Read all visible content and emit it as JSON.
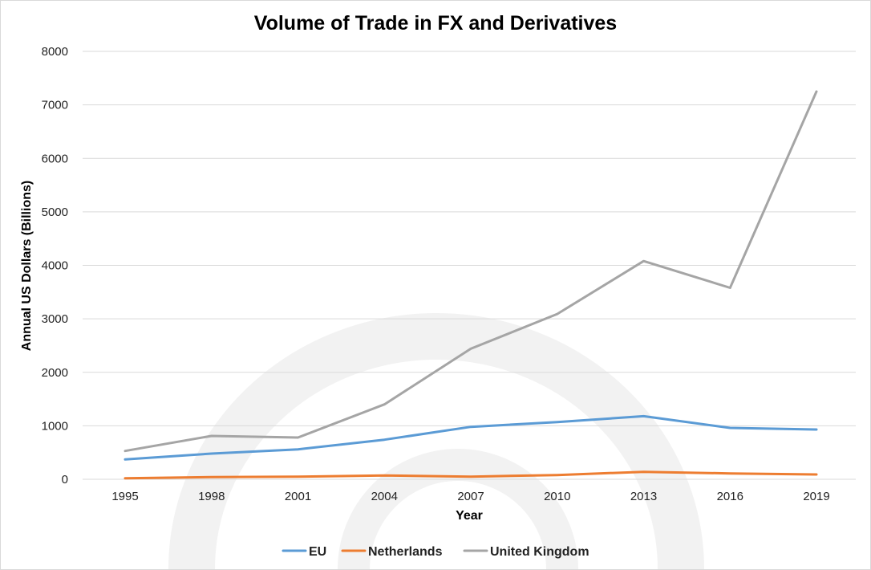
{
  "chart_data": {
    "type": "line",
    "title": "Volume of Trade in FX and Derivatives",
    "xlabel": "Year",
    "ylabel": "Annual US Dollars (Billions)",
    "categories": [
      "1995",
      "1998",
      "2001",
      "2004",
      "2007",
      "2010",
      "2013",
      "2016",
      "2019"
    ],
    "ylim": [
      0,
      8000
    ],
    "yticks": [
      0,
      1000,
      2000,
      3000,
      4000,
      5000,
      6000,
      7000,
      8000
    ],
    "grid": true,
    "legend_position": "bottom",
    "series": [
      {
        "name": "EU",
        "color": "#5b9bd5",
        "values": [
          370,
          480,
          560,
          740,
          980,
          1070,
          1180,
          960,
          930
        ]
      },
      {
        "name": "Netherlands",
        "color": "#ed7d31",
        "values": [
          20,
          40,
          50,
          70,
          50,
          80,
          140,
          110,
          90
        ]
      },
      {
        "name": "United Kingdom",
        "color": "#a5a5a5",
        "values": [
          530,
          810,
          780,
          1400,
          2440,
          3090,
          4080,
          3580,
          7250
        ]
      }
    ]
  }
}
